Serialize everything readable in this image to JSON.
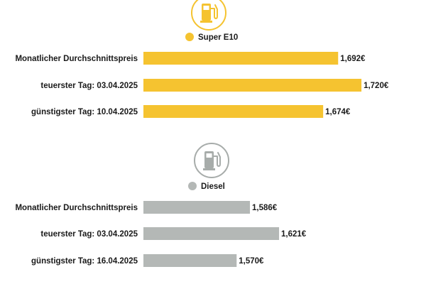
{
  "chart_data": [
    {
      "type": "bar",
      "orientation": "horizontal",
      "icon": "fuel-pump-icon",
      "legend": "Super E10",
      "color": "#f5c330",
      "icon_color": "#f5c330",
      "categories": [
        "Monatlicher Durchschnittspreis",
        "teuerster Tag: 03.04.2025",
        "günstigster Tag: 10.04.2025"
      ],
      "values": [
        1.692,
        1.72,
        1.674
      ],
      "value_labels": [
        "1,692€",
        "1,720€",
        "1,674€"
      ],
      "unit": "€"
    },
    {
      "type": "bar",
      "orientation": "horizontal",
      "icon": "fuel-pump-icon",
      "legend": "Diesel",
      "color": "#b4b8b6",
      "icon_color": "#a7acaa",
      "categories": [
        "Monatlicher Durchschnittspreis",
        "teuerster Tag: 03.04.2025",
        "günstigster Tag: 16.04.2025"
      ],
      "values": [
        1.586,
        1.621,
        1.57
      ],
      "value_labels": [
        "1,586€",
        "1,621€",
        "1,570€"
      ],
      "unit": "€"
    }
  ]
}
